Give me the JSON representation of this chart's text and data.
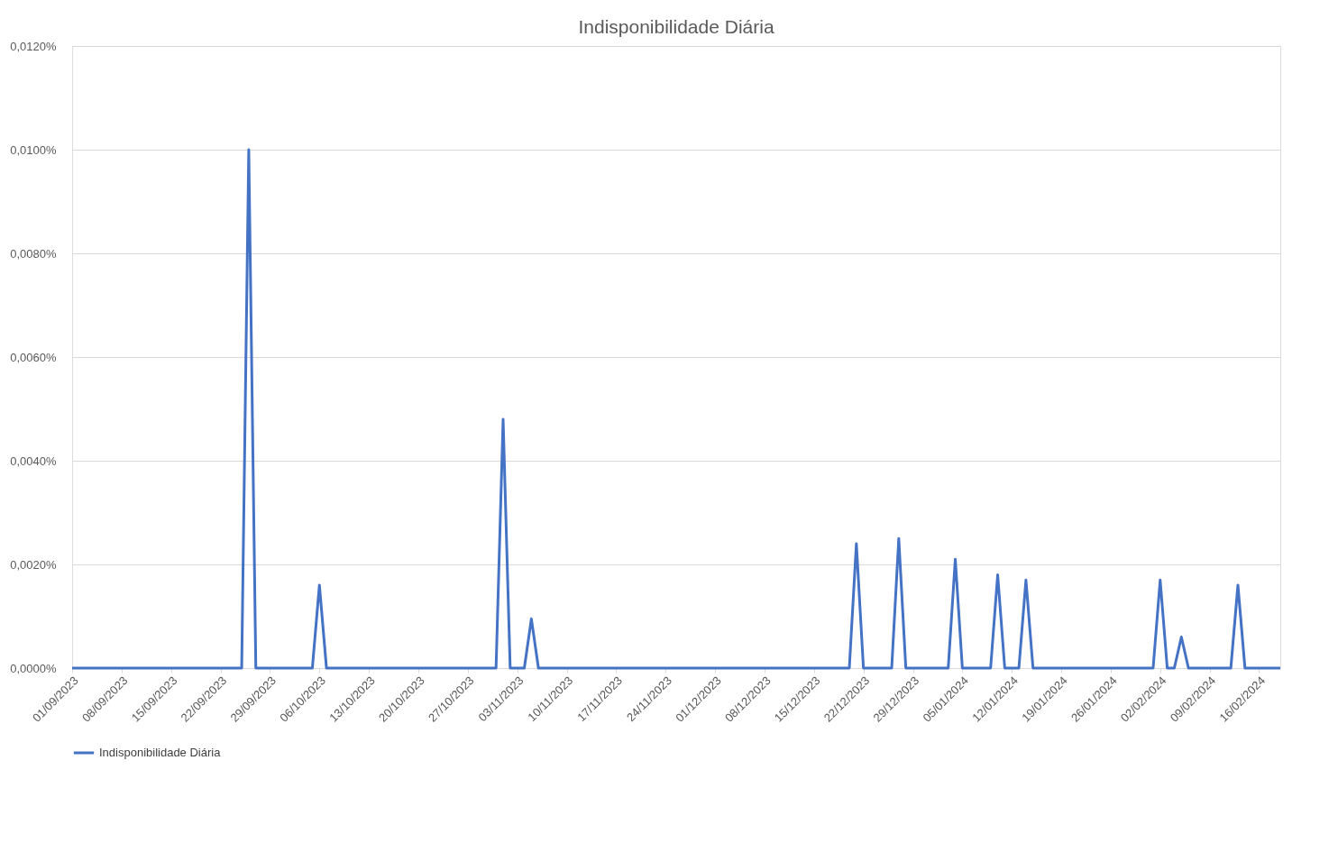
{
  "chart_data": {
    "type": "line",
    "title": "Indisponibilidade  Diária",
    "series": [
      {
        "name": "Indisponibilidade Diária",
        "color": "#4472c4",
        "x": [
          "2023-09-01",
          "2023-09-25",
          "2023-09-26",
          "2023-09-27",
          "2023-10-05",
          "2023-10-06",
          "2023-10-07",
          "2023-10-31",
          "2023-11-01",
          "2023-11-02",
          "2023-11-04",
          "2023-11-05",
          "2023-11-06",
          "2023-12-20",
          "2023-12-21",
          "2023-12-22",
          "2023-12-26",
          "2023-12-27",
          "2023-12-28",
          "2024-01-03",
          "2024-01-04",
          "2024-01-05",
          "2024-01-09",
          "2024-01-10",
          "2024-01-11",
          "2024-01-13",
          "2024-01-14",
          "2024-01-15",
          "2024-02-01",
          "2024-02-02",
          "2024-02-03",
          "2024-02-04",
          "2024-02-05",
          "2024-02-06",
          "2024-02-12",
          "2024-02-13",
          "2024-02-14",
          "2024-02-19"
        ],
        "values": [
          0,
          0,
          0.01,
          0,
          0,
          0.0016,
          0,
          0,
          0.0048,
          0,
          0,
          0.00095,
          0,
          0,
          0.0024,
          0,
          0,
          0.0025,
          0,
          0,
          0.0021,
          0,
          0,
          0.0018,
          0,
          0,
          0.0017,
          0,
          0,
          0.0017,
          0,
          0,
          0.0006,
          0,
          0,
          0.0016,
          0,
          0
        ]
      }
    ],
    "xlim": [
      "2023-09-01",
      "2024-02-19"
    ],
    "xticks": [
      {
        "value": "2023-09-01",
        "label": "01/09/2023"
      },
      {
        "value": "2023-09-08",
        "label": "08/09/2023"
      },
      {
        "value": "2023-09-15",
        "label": "15/09/2023"
      },
      {
        "value": "2023-09-22",
        "label": "22/09/2023"
      },
      {
        "value": "2023-09-29",
        "label": "29/09/2023"
      },
      {
        "value": "2023-10-06",
        "label": "06/10/2023"
      },
      {
        "value": "2023-10-13",
        "label": "13/10/2023"
      },
      {
        "value": "2023-10-20",
        "label": "20/10/2023"
      },
      {
        "value": "2023-10-27",
        "label": "27/10/2023"
      },
      {
        "value": "2023-11-03",
        "label": "03/11/2023"
      },
      {
        "value": "2023-11-10",
        "label": "10/11/2023"
      },
      {
        "value": "2023-11-17",
        "label": "17/11/2023"
      },
      {
        "value": "2023-11-24",
        "label": "24/11/2023"
      },
      {
        "value": "2023-12-01",
        "label": "01/12/2023"
      },
      {
        "value": "2023-12-08",
        "label": "08/12/2023"
      },
      {
        "value": "2023-12-15",
        "label": "15/12/2023"
      },
      {
        "value": "2023-12-22",
        "label": "22/12/2023"
      },
      {
        "value": "2023-12-29",
        "label": "29/12/2023"
      },
      {
        "value": "2024-01-05",
        "label": "05/01/2024"
      },
      {
        "value": "2024-01-12",
        "label": "12/01/2024"
      },
      {
        "value": "2024-01-19",
        "label": "19/01/2024"
      },
      {
        "value": "2024-01-26",
        "label": "26/01/2024"
      },
      {
        "value": "2024-02-02",
        "label": "02/02/2024"
      },
      {
        "value": "2024-02-09",
        "label": "09/02/2024"
      },
      {
        "value": "2024-02-16",
        "label": "16/02/2024"
      }
    ],
    "ylim": [
      0,
      0.012
    ],
    "yticks": [
      {
        "value": 0,
        "label": "0,0000%"
      },
      {
        "value": 0.002,
        "label": "0,0020%"
      },
      {
        "value": 0.004,
        "label": "0,0040%"
      },
      {
        "value": 0.006,
        "label": "0,0060%"
      },
      {
        "value": 0.008,
        "label": "0,0080%"
      },
      {
        "value": 0.01,
        "label": "0,0100%"
      },
      {
        "value": 0.012,
        "label": "0,0120%"
      }
    ],
    "grid": "y",
    "legend": "bottom",
    "marker": "none",
    "line_style": "solid"
  }
}
